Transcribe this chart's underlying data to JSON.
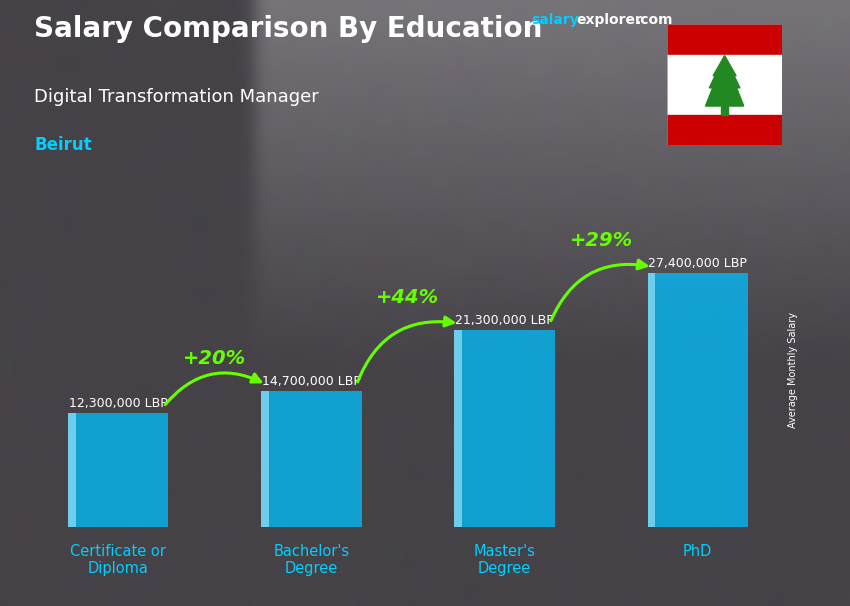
{
  "title": "Salary Comparison By Education",
  "subtitle": "Digital Transformation Manager",
  "location": "Beirut",
  "ylabel": "Average Monthly Salary",
  "categories": [
    "Certificate or\nDiploma",
    "Bachelor's\nDegree",
    "Master's\nDegree",
    "PhD"
  ],
  "values": [
    12300000,
    14700000,
    21300000,
    27400000
  ],
  "bar_color": "#00BFFF",
  "bar_alpha": 0.75,
  "labels": [
    "12,300,000 LBP",
    "14,700,000 LBP",
    "21,300,000 LBP",
    "27,400,000 LBP"
  ],
  "pct_labels": [
    "+20%",
    "+44%",
    "+29%"
  ],
  "pct_color": "#66FF00",
  "bg_color": "#808080",
  "title_color": "#FFFFFF",
  "subtitle_color": "#FFFFFF",
  "location_color": "#00CFFF",
  "label_color": "#FFFFFF",
  "xticklabel_color": "#00CFFF",
  "ylim": [
    0,
    34000000
  ],
  "brand_salary_color": "#00CFFF",
  "brand_explorer_color": "#FFFFFF",
  "brand_com_color": "#FFFFFF"
}
